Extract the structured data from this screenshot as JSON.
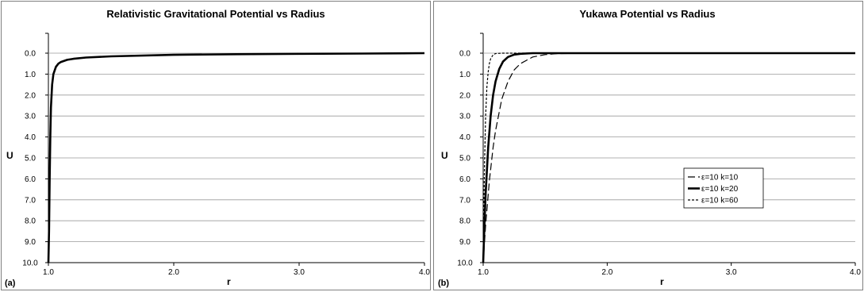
{
  "chart_data": [
    {
      "type": "line",
      "panel_label": "(a)",
      "title": "Relativistic Gravitational Potential vs Radius",
      "xlabel": "r",
      "ylabel": "U",
      "xlim": [
        1.0,
        4.0
      ],
      "ylim": [
        0.0,
        10.0
      ],
      "y_inverted": true,
      "x_ticks": [
        "1.0",
        "2.0",
        "3.0",
        "4.0"
      ],
      "y_ticks": [
        "0.0",
        "1.0",
        "2.0",
        "3.0",
        "4.0",
        "5.0",
        "6.0",
        "7.0",
        "8.0",
        "9.0",
        "10.0"
      ],
      "grid": "horizontal",
      "series": [
        {
          "style": "solid-thick",
          "x": [
            1.0,
            1.005,
            1.01,
            1.015,
            1.02,
            1.03,
            1.04,
            1.06,
            1.08,
            1.1,
            1.15,
            1.2,
            1.3,
            1.5,
            2.0,
            2.5,
            3.0,
            3.5,
            4.0
          ],
          "y": [
            10.0,
            8.5,
            6.0,
            4.0,
            2.6,
            1.5,
            1.0,
            0.65,
            0.5,
            0.42,
            0.32,
            0.27,
            0.21,
            0.15,
            0.08,
            0.05,
            0.03,
            0.02,
            0.0
          ]
        }
      ]
    },
    {
      "type": "line",
      "panel_label": "(b)",
      "title": "Yukawa Potential vs Radius",
      "xlabel": "r",
      "ylabel": "U",
      "xlim": [
        1.0,
        4.0
      ],
      "ylim": [
        0.0,
        10.0
      ],
      "y_inverted": true,
      "x_ticks": [
        "1.0",
        "2.0",
        "3.0",
        "4.0"
      ],
      "y_ticks": [
        "0.0",
        "1.0",
        "2.0",
        "3.0",
        "4.0",
        "5.0",
        "6.0",
        "7.0",
        "8.0",
        "9.0",
        "10.0"
      ],
      "grid": "horizontal",
      "legend": "center-right",
      "series": [
        {
          "name": "ε=10 k=10",
          "style": "long-dash",
          "x": [
            1.0,
            1.02,
            1.05,
            1.08,
            1.1,
            1.15,
            1.2,
            1.25,
            1.3,
            1.4,
            1.5,
            1.6,
            2.0,
            3.0,
            4.0
          ],
          "y": [
            10.0,
            8.2,
            6.1,
            4.5,
            3.7,
            2.2,
            1.35,
            0.8,
            0.5,
            0.18,
            0.07,
            0.02,
            0.0,
            0.0,
            0.0
          ]
        },
        {
          "name": "ε=10 k=20",
          "style": "solid-thick",
          "x": [
            1.0,
            1.01,
            1.02,
            1.04,
            1.06,
            1.08,
            1.1,
            1.13,
            1.16,
            1.2,
            1.25,
            1.3,
            1.4,
            1.5,
            2.0,
            3.0,
            4.0
          ],
          "y": [
            10.0,
            8.2,
            6.7,
            4.5,
            3.0,
            2.0,
            1.35,
            0.75,
            0.4,
            0.18,
            0.07,
            0.03,
            0.0,
            0.0,
            0.0,
            0.0,
            0.0
          ]
        },
        {
          "name": "ε=10 k=60",
          "style": "short-dash",
          "x": [
            1.0,
            1.005,
            1.01,
            1.02,
            1.03,
            1.04,
            1.05,
            1.06,
            1.08,
            1.1,
            1.15,
            1.2,
            2.0,
            3.0,
            4.0
          ],
          "y": [
            10.0,
            7.4,
            5.5,
            3.0,
            1.6,
            0.9,
            0.5,
            0.27,
            0.08,
            0.02,
            0.0,
            0.0,
            0.0,
            0.0,
            0.0
          ]
        }
      ]
    }
  ]
}
